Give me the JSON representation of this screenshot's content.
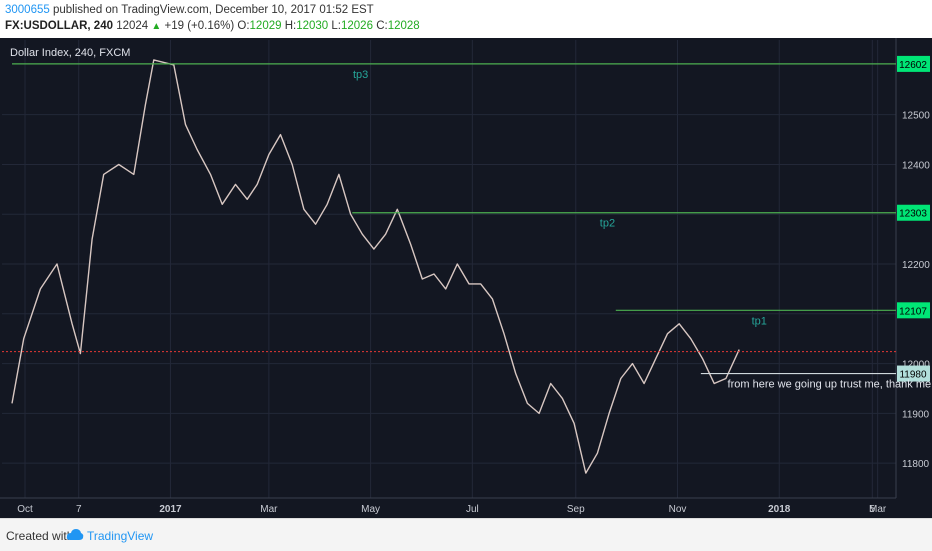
{
  "header": {
    "author": "3000655",
    "published_text": "published on TradingView.com, December 10, 2017 01:52 EST",
    "symbol": "FX:USDOLLAR, 240",
    "last": "12024",
    "change": "+19 (+0.16%)",
    "o_label": "O:",
    "o_value": "12029",
    "h_label": "H:",
    "h_value": "12030",
    "l_label": "L:",
    "l_value": "12026",
    "c_label": "C:",
    "c_value": "12028"
  },
  "footer": {
    "created_with": "Created with",
    "brand": "TradingView"
  },
  "chart_data": {
    "type": "line",
    "title": "Dollar Index, 240, FXCM",
    "x_ticks": [
      "Oct",
      "7",
      "2017",
      "Mar",
      "May",
      "Jul",
      "Sep",
      "Nov",
      "2018",
      "Mar",
      "5"
    ],
    "y_ticks": [
      11800,
      11900,
      12000,
      12100,
      12200,
      12300,
      12400,
      12500
    ],
    "ylim": [
      11730,
      12650
    ],
    "price_series": [
      {
        "date": "2016-09-28",
        "value": 11920
      },
      {
        "date": "2016-10-05",
        "value": 12050
      },
      {
        "date": "2016-10-15",
        "value": 12150
      },
      {
        "date": "2016-10-25",
        "value": 12200
      },
      {
        "date": "2016-11-03",
        "value": 12080
      },
      {
        "date": "2016-11-08",
        "value": 12020
      },
      {
        "date": "2016-11-15",
        "value": 12250
      },
      {
        "date": "2016-11-22",
        "value": 12380
      },
      {
        "date": "2016-12-01",
        "value": 12400
      },
      {
        "date": "2016-12-10",
        "value": 12380
      },
      {
        "date": "2016-12-17",
        "value": 12520
      },
      {
        "date": "2016-12-22",
        "value": 12610
      },
      {
        "date": "2017-01-03",
        "value": 12600
      },
      {
        "date": "2017-01-10",
        "value": 12480
      },
      {
        "date": "2017-01-17",
        "value": 12430
      },
      {
        "date": "2017-01-25",
        "value": 12380
      },
      {
        "date": "2017-02-01",
        "value": 12320
      },
      {
        "date": "2017-02-09",
        "value": 12360
      },
      {
        "date": "2017-02-16",
        "value": 12330
      },
      {
        "date": "2017-02-22",
        "value": 12360
      },
      {
        "date": "2017-03-01",
        "value": 12420
      },
      {
        "date": "2017-03-08",
        "value": 12460
      },
      {
        "date": "2017-03-15",
        "value": 12400
      },
      {
        "date": "2017-03-22",
        "value": 12310
      },
      {
        "date": "2017-03-29",
        "value": 12280
      },
      {
        "date": "2017-04-05",
        "value": 12320
      },
      {
        "date": "2017-04-12",
        "value": 12380
      },
      {
        "date": "2017-04-19",
        "value": 12300
      },
      {
        "date": "2017-04-26",
        "value": 12260
      },
      {
        "date": "2017-05-03",
        "value": 12230
      },
      {
        "date": "2017-05-10",
        "value": 12260
      },
      {
        "date": "2017-05-17",
        "value": 12310
      },
      {
        "date": "2017-05-25",
        "value": 12240
      },
      {
        "date": "2017-06-01",
        "value": 12170
      },
      {
        "date": "2017-06-08",
        "value": 12180
      },
      {
        "date": "2017-06-15",
        "value": 12150
      },
      {
        "date": "2017-06-22",
        "value": 12200
      },
      {
        "date": "2017-06-29",
        "value": 12160
      },
      {
        "date": "2017-07-06",
        "value": 12160
      },
      {
        "date": "2017-07-13",
        "value": 12130
      },
      {
        "date": "2017-07-20",
        "value": 12060
      },
      {
        "date": "2017-07-27",
        "value": 11980
      },
      {
        "date": "2017-08-03",
        "value": 11920
      },
      {
        "date": "2017-08-10",
        "value": 11900
      },
      {
        "date": "2017-08-17",
        "value": 11960
      },
      {
        "date": "2017-08-24",
        "value": 11930
      },
      {
        "date": "2017-08-31",
        "value": 11880
      },
      {
        "date": "2017-09-07",
        "value": 11780
      },
      {
        "date": "2017-09-14",
        "value": 11820
      },
      {
        "date": "2017-09-21",
        "value": 11900
      },
      {
        "date": "2017-09-28",
        "value": 11970
      },
      {
        "date": "2017-10-05",
        "value": 12000
      },
      {
        "date": "2017-10-12",
        "value": 11960
      },
      {
        "date": "2017-10-19",
        "value": 12010
      },
      {
        "date": "2017-10-26",
        "value": 12060
      },
      {
        "date": "2017-11-02",
        "value": 12080
      },
      {
        "date": "2017-11-09",
        "value": 12050
      },
      {
        "date": "2017-11-16",
        "value": 12010
      },
      {
        "date": "2017-11-23",
        "value": 11960
      },
      {
        "date": "2017-11-30",
        "value": 11970
      },
      {
        "date": "2017-12-08",
        "value": 12028
      }
    ],
    "horizontal_lines": [
      {
        "value": 12602,
        "label": "12602",
        "tag": "tp3",
        "color": "#4caf50",
        "start": "2016-09-28",
        "tag_date": "2017-04-25",
        "tag_pos": "below"
      },
      {
        "value": 12303,
        "label": "12303",
        "tag": "tp2",
        "color": "#4caf50",
        "start": "2017-04-20",
        "tag_date": "2017-09-20",
        "tag_pos": "below"
      },
      {
        "value": 12107,
        "label": "12107",
        "tag": "tp1",
        "color": "#4caf50",
        "start": "2017-09-25",
        "tag_date": "2017-12-20",
        "tag_pos": "below"
      },
      {
        "value": 11980,
        "label": "11980",
        "tag": "from here we going up trust me, thank me later",
        "color": "#cfd8dc",
        "start": "2017-11-15",
        "tag_date": "2017-12-01",
        "tag_pos": "below"
      }
    ],
    "current_price": {
      "value": 12024,
      "color": "#e53935"
    },
    "colors": {
      "background": "#131722",
      "grid": "#232838",
      "price_line": "#d8c7c2",
      "axis_text": "#c8cbd3",
      "tag_text": "#26a69a",
      "label_bg": "#00e676",
      "label_text": "#000000"
    }
  }
}
